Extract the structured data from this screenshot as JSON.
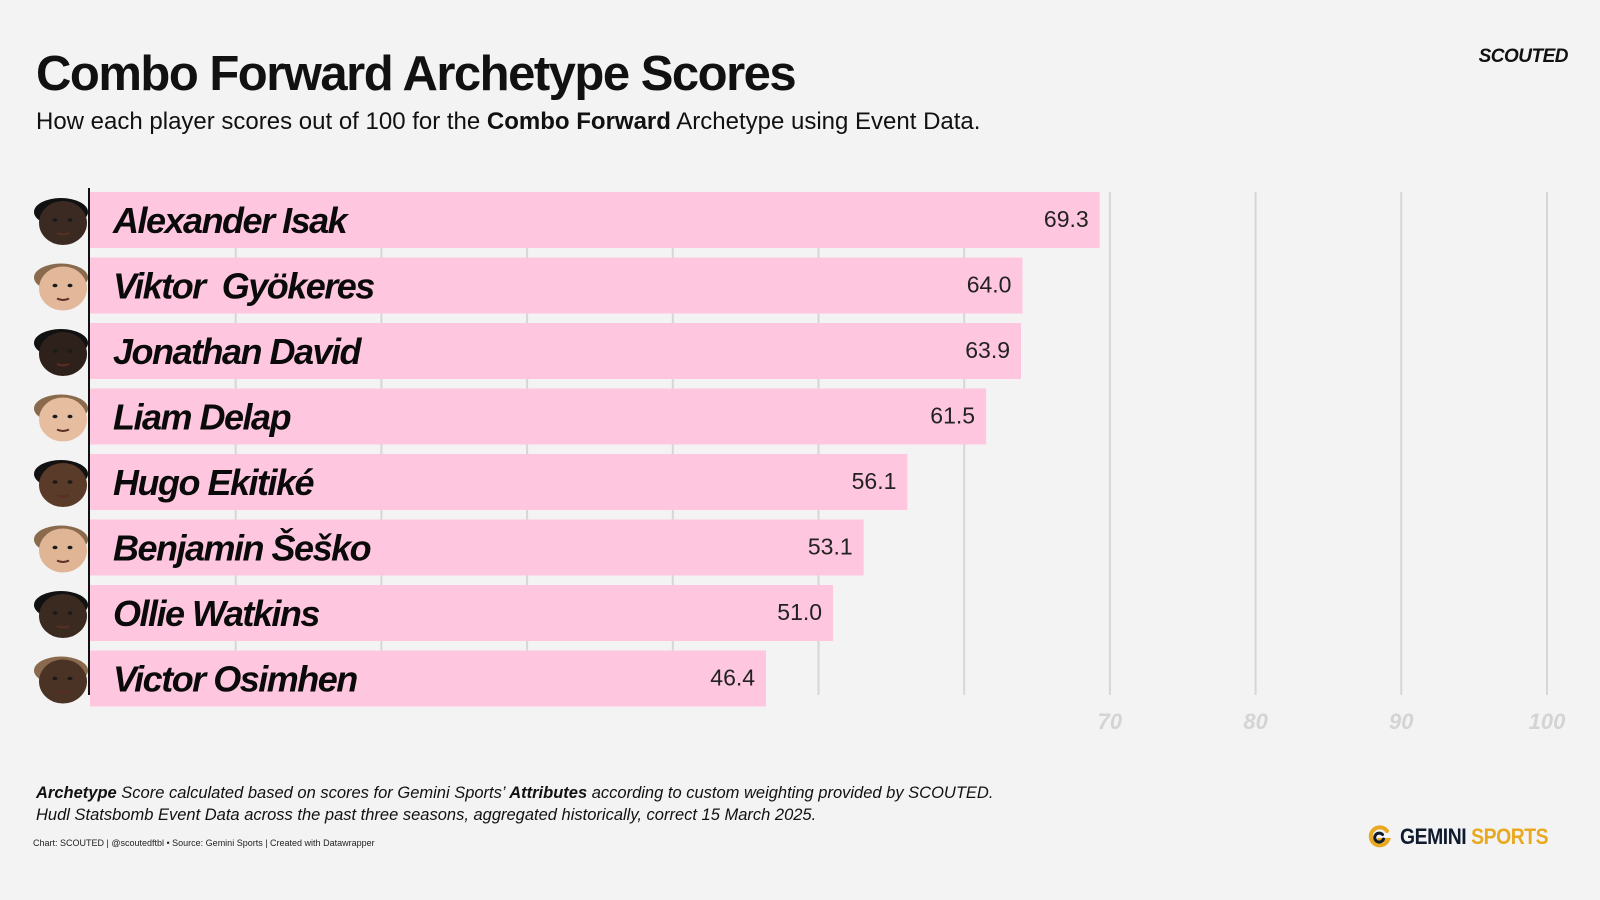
{
  "header": {
    "title": "Combo Forward Archetype Scores",
    "subtitle_pre": "How each player scores out of 100 for the ",
    "subtitle_bold": "Combo Forward",
    "subtitle_post": " Archetype using Event Data.",
    "brand": "SCOUTED"
  },
  "chart_data": {
    "type": "bar",
    "orientation": "horizontal",
    "categories": [
      "Alexander Isak",
      "Viktor  Gyökeres",
      "Jonathan David",
      "Liam Delap",
      "Hugo Ekitiké",
      "Benjamin Šeško",
      "Ollie Watkins",
      "Victor Osimhen"
    ],
    "values": [
      69.3,
      64.0,
      63.9,
      61.5,
      56.1,
      53.1,
      51.0,
      46.4
    ],
    "value_labels": [
      "69.3",
      "64.0",
      "63.9",
      "61.5",
      "56.1",
      "53.1",
      "51.0",
      "46.4"
    ],
    "xlim": [
      0,
      100
    ],
    "xticks": [
      0,
      10,
      20,
      30,
      40,
      50,
      60,
      70,
      80,
      90,
      100
    ],
    "xtick_labels_shown": [
      "70",
      "80",
      "90",
      "100"
    ],
    "grid": true,
    "bar_color": "#ffc7df",
    "gridline_color": "#d6d6d6",
    "avatar_skin": [
      "#3a2a22",
      "#e2b79a",
      "#2e201a",
      "#e7bda0",
      "#5a3a28",
      "#e0b596",
      "#3b2a20",
      "#4a3224"
    ]
  },
  "footer": {
    "note_line1_bold1": "Archetype",
    "note_line1_mid": " Score calculated based on scores for Gemini Sports’ ",
    "note_line1_bold2": "Attributes",
    "note_line1_end": " according to custom weighting provided by SCOUTED.",
    "note_line2": "Hudl Statsbomb Event Data across the past three seasons, aggregated historically, correct 15 March 2025.",
    "credit": "Chart: SCOUTED | @scoutedftbl • Source: Gemini Sports | Created with Datawrapper",
    "logo_word1": "GEMINI",
    "logo_word2": "SPORTS"
  }
}
